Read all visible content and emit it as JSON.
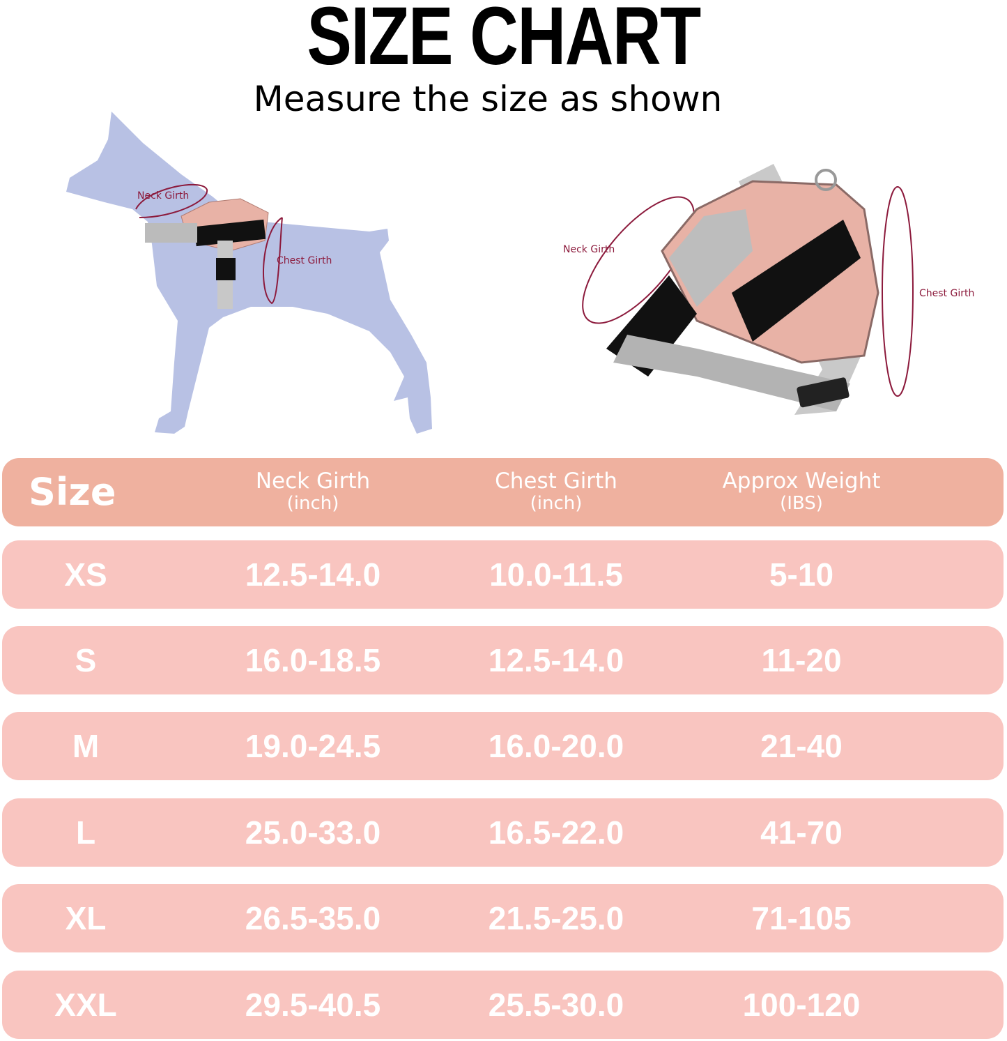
{
  "title": "SIZE CHART",
  "subtitle": "Measure the size as shown",
  "diagram_labels": {
    "neck": "Neck Girth",
    "chest": "Chest Girth"
  },
  "colors": {
    "header_row": "#efb19f",
    "data_row": "#f9c5c0",
    "dog_silhouette": "#b8c1e4",
    "label": "#8c1a3c",
    "harness": "#e8b2a6"
  },
  "table": {
    "headers": [
      {
        "label": "Size",
        "unit": ""
      },
      {
        "label": "Neck Girth",
        "unit": "(inch)"
      },
      {
        "label": "Chest Girth",
        "unit": "(inch)"
      },
      {
        "label": "Approx Weight",
        "unit": "(IBS)"
      }
    ],
    "rows": [
      [
        "XS",
        "12.5-14.0",
        "10.0-11.5",
        "5-10"
      ],
      [
        "S",
        "16.0-18.5",
        "12.5-14.0",
        "11-20"
      ],
      [
        "M",
        "19.0-24.5",
        "16.0-20.0",
        "21-40"
      ],
      [
        "L",
        "25.0-33.0",
        "16.5-22.0",
        "41-70"
      ],
      [
        "XL",
        "26.5-35.0",
        "21.5-25.0",
        "71-105"
      ],
      [
        "XXL",
        "29.5-40.5",
        "25.5-30.0",
        "100-120"
      ]
    ]
  }
}
